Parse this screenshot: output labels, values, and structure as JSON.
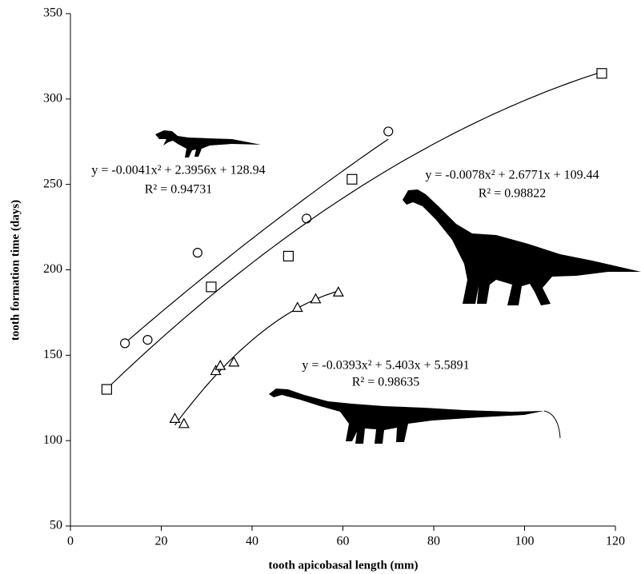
{
  "chart_data": {
    "type": "scatter",
    "xlabel": "tooth apicobasal length (mm)",
    "ylabel": "tooth formation time (days)",
    "xlim": [
      0,
      120
    ],
    "xticks": [
      0,
      20,
      40,
      60,
      80,
      100,
      120
    ],
    "ylim": [
      50,
      350
    ],
    "yticks": [
      50,
      100,
      150,
      200,
      250,
      300,
      350
    ],
    "series": [
      {
        "marker": "circle",
        "color": "#000000",
        "x": [
          12,
          17,
          28,
          52,
          70
        ],
        "values": [
          157,
          159,
          210,
          230,
          281
        ],
        "fit": {
          "coefficients": [
            -0.0041,
            2.3956,
            128.94
          ],
          "equation": "y = -0.0041x² + 2.3956x + 128.94",
          "r2": "R² = 0.94731"
        }
      },
      {
        "marker": "square",
        "color": "#000000",
        "x": [
          8,
          31,
          48,
          62,
          117
        ],
        "values": [
          130,
          190,
          208,
          253,
          315
        ],
        "fit": {
          "coefficients": [
            -0.0078,
            2.6771,
            109.44
          ],
          "equation": "y = -0.0078x² + 2.6771x + 109.44",
          "r2": "R² = 0.98822"
        }
      },
      {
        "marker": "triangle",
        "color": "#000000",
        "x": [
          23,
          25,
          32,
          33,
          36,
          50,
          54,
          59
        ],
        "values": [
          113,
          110,
          141,
          144,
          146,
          178,
          183,
          187
        ],
        "fit": {
          "coefficients": [
            -0.0393,
            5.403,
            5.5891
          ],
          "equation": "y = -0.0393x² + 5.403x + 5.5891",
          "r2": "R² = 0.98635"
        }
      }
    ]
  }
}
